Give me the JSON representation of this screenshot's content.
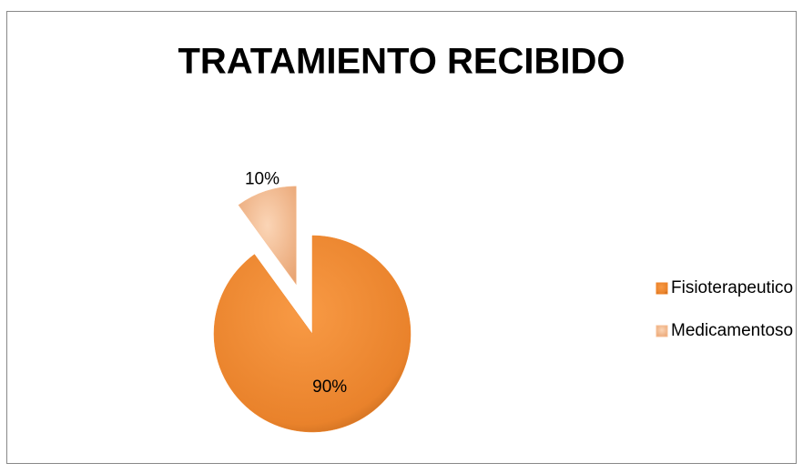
{
  "chart_data": {
    "type": "pie",
    "title": "TRATAMIENTO RECIBIDO",
    "categories": [
      "Fisioterapeutico",
      "Medicamentoso"
    ],
    "values": [
      90,
      10
    ],
    "value_labels": [
      "90%",
      "10%"
    ],
    "colors": [
      "#f0862a",
      "#f7bf94"
    ],
    "exploded": [
      false,
      true
    ],
    "legend": "right"
  }
}
